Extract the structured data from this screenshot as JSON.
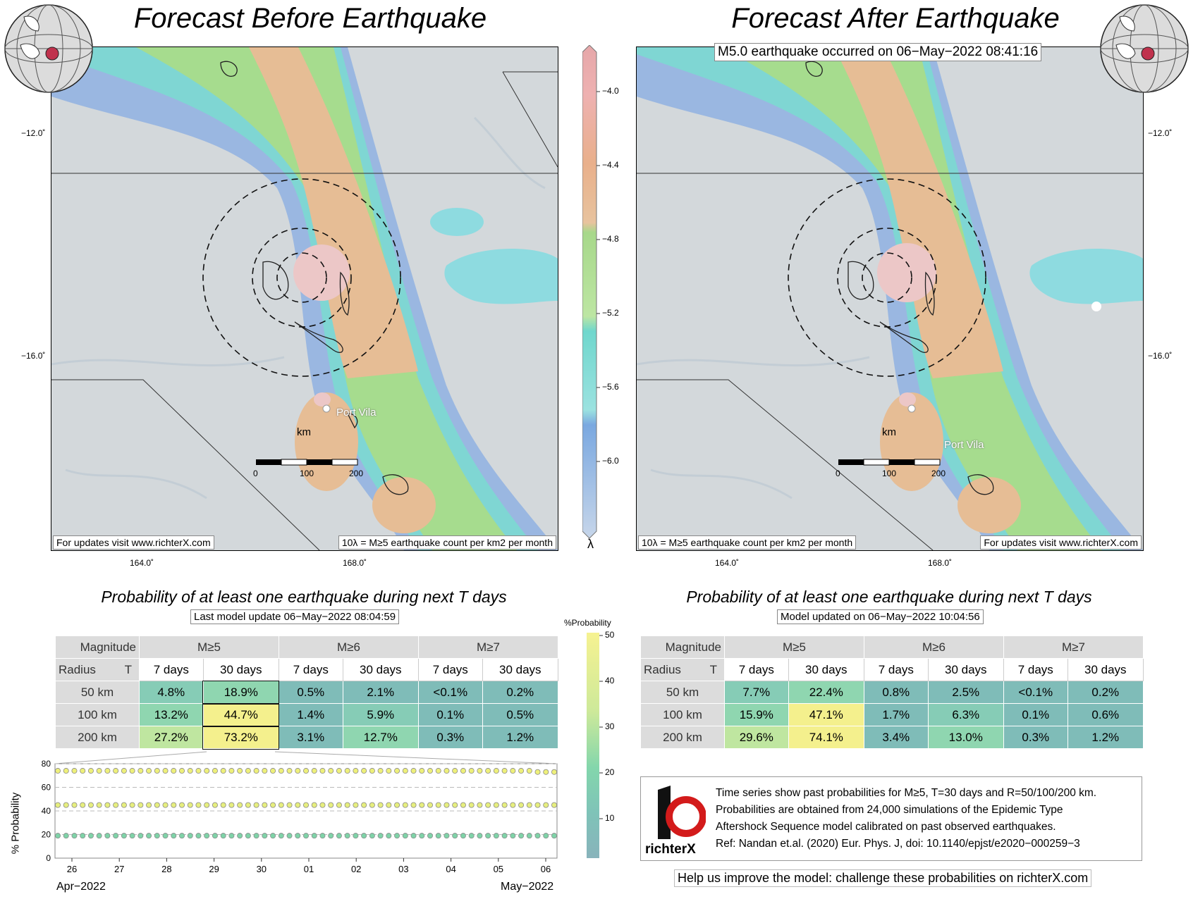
{
  "left_map": {
    "title": "Forecast Before Earthquake",
    "lat_ticks": [
      "−12.0˚",
      "−16.0˚"
    ],
    "lon_ticks": [
      "164.0˚",
      "168.0˚"
    ],
    "place_label": "Port Vila",
    "scale_unit": "km",
    "scale_ticks": [
      "0",
      "100",
      "200"
    ],
    "footer_left": "For updates visit www.richterX.com",
    "footer_right": "10λ = M≥5 earthquake count per km2 per month"
  },
  "right_map": {
    "title": "Forecast After Earthquake",
    "event_label": "M5.0 earthquake occurred on 06−May−2022 08:41:16",
    "lat_ticks": [
      "−12.0˚",
      "−16.0˚"
    ],
    "lon_ticks": [
      "164.0˚",
      "168.0˚"
    ],
    "place_label": "Port Vila",
    "scale_unit": "km",
    "scale_ticks": [
      "0",
      "100",
      "200"
    ],
    "footer_left": "10λ = M≥5 earthquake count per km2 per month",
    "footer_right": "For updates visit www.richterX.com"
  },
  "lambda_colorbar": {
    "ticks": [
      "−4.0",
      "−4.4",
      "−4.8",
      "−5.2",
      "−5.6",
      "−6.0"
    ],
    "label": "λ"
  },
  "prob_colorbar": {
    "title": "%Probability",
    "ticks": [
      "50",
      "40",
      "30",
      "20",
      "10"
    ]
  },
  "left_table": {
    "title": "Probability of at least one earthquake during next T days",
    "subtitle": "Last model update 06−May−2022 08:04:59",
    "magnitude_label": "Magnitude",
    "radius_label": "Radius",
    "t_label": "T",
    "magnitudes": [
      "M≥5",
      "M≥6",
      "M≥7"
    ],
    "periods": [
      "7 days",
      "30 days",
      "7 days",
      "30 days",
      "7 days",
      "30 days"
    ],
    "rows": [
      {
        "radius": "50 km",
        "values": [
          "4.8%",
          "18.9%",
          "0.5%",
          "2.1%",
          "<0.1%",
          "0.2%"
        ],
        "num": [
          4.8,
          18.9,
          0.5,
          2.1,
          0.05,
          0.2
        ]
      },
      {
        "radius": "100 km",
        "values": [
          "13.2%",
          "44.7%",
          "1.4%",
          "5.9%",
          "0.1%",
          "0.5%"
        ],
        "num": [
          13.2,
          44.7,
          1.4,
          5.9,
          0.1,
          0.5
        ]
      },
      {
        "radius": "200 km",
        "values": [
          "27.2%",
          "73.2%",
          "3.1%",
          "12.7%",
          "0.3%",
          "1.2%"
        ],
        "num": [
          27.2,
          73.2,
          3.1,
          12.7,
          0.3,
          1.2
        ]
      }
    ]
  },
  "right_table": {
    "title": "Probability of at least one earthquake during next T days",
    "subtitle": "Model updated on 06−May−2022 10:04:56",
    "magnitude_label": "Magnitude",
    "radius_label": "Radius",
    "t_label": "T",
    "magnitudes": [
      "M≥5",
      "M≥6",
      "M≥7"
    ],
    "periods": [
      "7 days",
      "30 days",
      "7 days",
      "30 days",
      "7 days",
      "30 days"
    ],
    "rows": [
      {
        "radius": "50 km",
        "values": [
          "7.7%",
          "22.4%",
          "0.8%",
          "2.5%",
          "<0.1%",
          "0.2%"
        ],
        "num": [
          7.7,
          22.4,
          0.8,
          2.5,
          0.05,
          0.2
        ]
      },
      {
        "radius": "100 km",
        "values": [
          "15.9%",
          "47.1%",
          "1.7%",
          "6.3%",
          "0.1%",
          "0.6%"
        ],
        "num": [
          15.9,
          47.1,
          1.7,
          6.3,
          0.1,
          0.6
        ]
      },
      {
        "radius": "200 km",
        "values": [
          "29.6%",
          "74.1%",
          "3.4%",
          "13.0%",
          "0.3%",
          "1.2%"
        ],
        "num": [
          29.6,
          74.1,
          3.4,
          13.0,
          0.3,
          1.2
        ]
      }
    ]
  },
  "chart_data": {
    "type": "line",
    "title": "",
    "ylabel": "% Probability",
    "xlabel": "",
    "ylim": [
      0,
      80
    ],
    "yticks": [
      "0",
      "20",
      "40",
      "60",
      "80"
    ],
    "x_ticks": [
      "26",
      "27",
      "28",
      "29",
      "30",
      "01",
      "02",
      "03",
      "04",
      "05",
      "06"
    ],
    "x_start_label": "Apr−2022",
    "x_end_label": "May−2022",
    "grid": "horizontal dashed",
    "series": [
      {
        "values": [
          74,
          74,
          74,
          74,
          74,
          74,
          74,
          74,
          74,
          74,
          74,
          73
        ],
        "color": "#eef07a"
      },
      {
        "values": [
          45,
          45,
          45,
          45,
          45,
          45,
          45,
          45,
          45,
          45,
          45,
          45
        ],
        "color": "#e6ee7e"
      },
      {
        "values": [
          19,
          19,
          19,
          19,
          19,
          19,
          19,
          19,
          19,
          19,
          19,
          19
        ],
        "color": "#7fd3a8"
      }
    ]
  },
  "info": {
    "logo_text": "richterX",
    "description": [
      "Time series show past probabilities for M≥5, T=30 days and R=50/100/200 km.",
      "Probabilities are obtained from 24,000 simulations of the Epidemic Type",
      "Aftershock Sequence model calibrated on past observed earthquakes.",
      "Ref: Nandan et.al. (2020) Eur. Phys. J, doi: 10.1140/epjst/e2020−000259−3"
    ],
    "help_text": "Help us improve the model: challenge these probabilities on richterX.com"
  }
}
